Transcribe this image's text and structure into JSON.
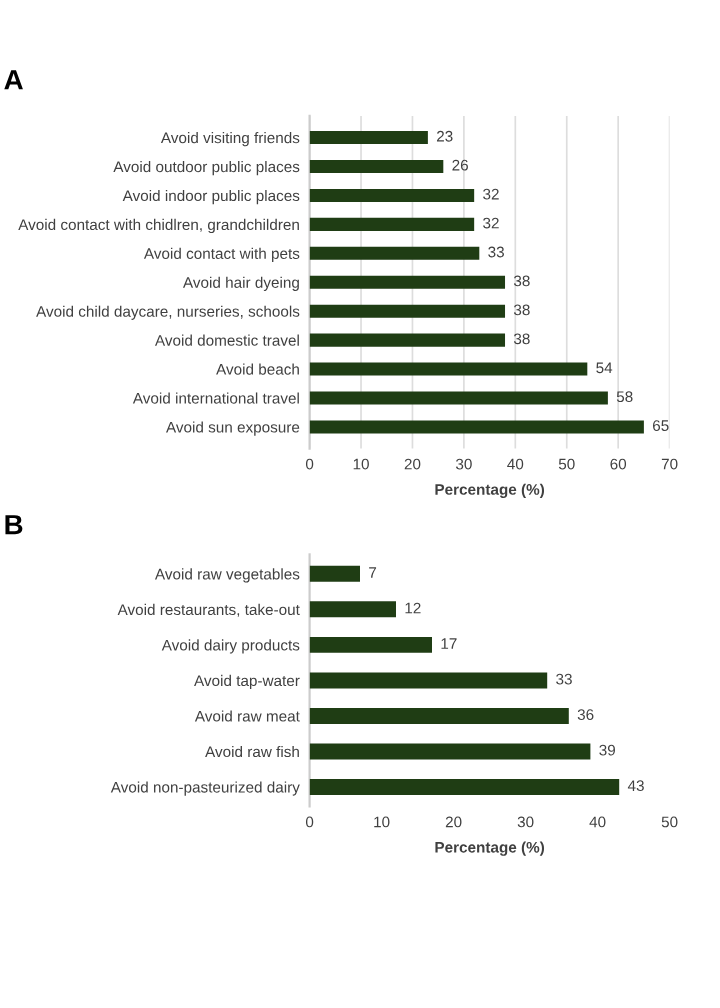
{
  "chart_data": [
    {
      "type": "bar",
      "title": "A",
      "orientation": "horizontal",
      "categories": [
        "Avoid visiting friends",
        "Avoid outdoor public places",
        "Avoid indoor public places",
        "Avoid contact with chidlren, grandchildren",
        "Avoid contact with pets",
        "Avoid hair dyeing",
        "Avoid child daycare, nurseries, schools",
        "Avoid domestic travel",
        "Avoid beach",
        "Avoid international travel",
        "Avoid sun exposure"
      ],
      "values": [
        23,
        26,
        32,
        32,
        33,
        38,
        38,
        38,
        54,
        58,
        65
      ],
      "color": "#1f3d14",
      "xlabel": "Percentage (%)",
      "xlim": [
        0,
        70
      ],
      "xticks": [
        0,
        10,
        20,
        30,
        40,
        50,
        60,
        70
      ],
      "grid": "x",
      "data_labels": true
    },
    {
      "type": "bar",
      "title": "B",
      "orientation": "horizontal",
      "categories": [
        "Avoid raw vegetables",
        "Avoid restaurants, take-out",
        "Avoid dairy products",
        "Avoid tap-water",
        "Avoid raw meat",
        "Avoid raw fish",
        "Avoid non-pasteurized dairy"
      ],
      "values": [
        7,
        12,
        17,
        33,
        36,
        39,
        43
      ],
      "color": "#1f3d14",
      "xlabel": "Percentage (%)",
      "xlim": [
        0,
        50
      ],
      "xticks": [
        0,
        10,
        20,
        30,
        40,
        50
      ],
      "grid": false,
      "data_labels": true
    }
  ]
}
